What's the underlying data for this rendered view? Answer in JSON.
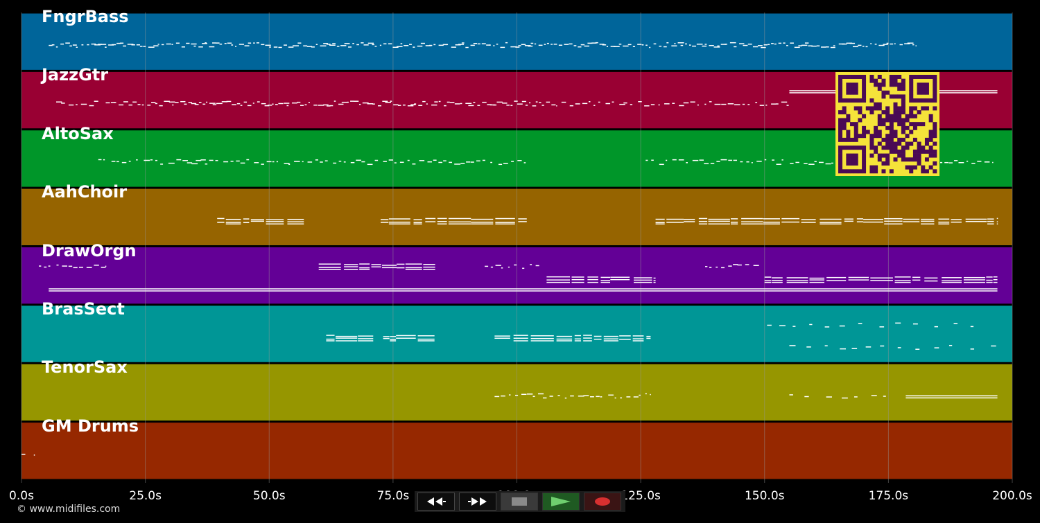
{
  "app": {
    "copyright": "© www.midifiles.com"
  },
  "colors": {
    "background": "#000000",
    "note": "#ffffff",
    "grid": "#9a9a9a",
    "qr_bg": "#f5e33a",
    "qr_fg": "#4a0a55"
  },
  "timeline": {
    "range_s": [
      0,
      200
    ],
    "ticks": [
      {
        "value": 0,
        "label": "0.0s"
      },
      {
        "value": 25,
        "label": "25.0s"
      },
      {
        "value": 50,
        "label": "50.0s"
      },
      {
        "value": 75,
        "label": "75.0s"
      },
      {
        "value": 100,
        "label": "100.0s"
      },
      {
        "value": 125,
        "label": "125.0s"
      },
      {
        "value": 150,
        "label": "150.0s"
      },
      {
        "value": 175,
        "label": "175.0s"
      },
      {
        "value": 200,
        "label": "200.0s"
      }
    ]
  },
  "tracks": [
    {
      "name": "FngrBass",
      "color": "#00659a",
      "segments": [
        {
          "start": 5.5,
          "end": 180.5,
          "density": "dense",
          "pitch": "mid"
        }
      ]
    },
    {
      "name": "JazzGtr",
      "color": "#990033",
      "segments": [
        {
          "start": 7,
          "end": 15.5,
          "density": "medium",
          "pitch": "mid"
        },
        {
          "start": 17,
          "end": 108,
          "density": "dense",
          "pitch": "mid"
        },
        {
          "start": 109,
          "end": 155,
          "density": "medium",
          "pitch": "mid"
        },
        {
          "start": 155,
          "end": 197,
          "density": "sustained",
          "pitch": "high"
        }
      ]
    },
    {
      "name": "AltoSax",
      "color": "#009629",
      "segments": [
        {
          "start": 15.5,
          "end": 102.5,
          "density": "medium",
          "pitch": "mid"
        },
        {
          "start": 126,
          "end": 196,
          "density": "medium",
          "pitch": "mid"
        }
      ]
    },
    {
      "name": "AahChoir",
      "color": "#966400",
      "segments": [
        {
          "start": 39.5,
          "end": 57,
          "density": "chords",
          "pitch": "mid"
        },
        {
          "start": 72.5,
          "end": 102,
          "density": "chords",
          "pitch": "mid"
        },
        {
          "start": 128,
          "end": 197,
          "density": "chords",
          "pitch": "mid"
        }
      ]
    },
    {
      "name": "DrawOrgn",
      "color": "#630096",
      "segments": [
        {
          "start": 3.5,
          "end": 17,
          "density": "medium",
          "pitch": "high"
        },
        {
          "start": 60,
          "end": 83.5,
          "density": "chords",
          "pitch": "high"
        },
        {
          "start": 93.5,
          "end": 104.5,
          "density": "medium",
          "pitch": "high"
        },
        {
          "start": 106,
          "end": 128,
          "density": "chords",
          "pitch": "mid"
        },
        {
          "start": 138,
          "end": 149,
          "density": "medium",
          "pitch": "high"
        },
        {
          "start": 150,
          "end": 197,
          "density": "chords",
          "pitch": "mid"
        },
        {
          "start": 5.5,
          "end": 197,
          "density": "sustained",
          "pitch": "low"
        }
      ]
    },
    {
      "name": "BrasSect",
      "color": "#009696",
      "segments": [
        {
          "start": 61.5,
          "end": 71,
          "density": "chords",
          "pitch": "mid"
        },
        {
          "start": 73,
          "end": 83.5,
          "density": "chords",
          "pitch": "mid"
        },
        {
          "start": 95.5,
          "end": 127,
          "density": "chords",
          "pitch": "mid"
        },
        {
          "start": 150.5,
          "end": 195,
          "density": "sparse",
          "pitch": "high"
        },
        {
          "start": 155,
          "end": 197,
          "density": "sparse",
          "pitch": "low"
        }
      ]
    },
    {
      "name": "TenorSax",
      "color": "#969600",
      "segments": [
        {
          "start": 95.5,
          "end": 127,
          "density": "medium",
          "pitch": "mid"
        },
        {
          "start": 155,
          "end": 174.5,
          "density": "sparse",
          "pitch": "mid"
        },
        {
          "start": 178.5,
          "end": 197,
          "density": "sustained",
          "pitch": "mid"
        }
      ]
    },
    {
      "name": "GM Drums",
      "color": "#962800",
      "segments": [
        {
          "start": 0,
          "end": 2.5,
          "density": "sparse",
          "pitch": "mid"
        }
      ]
    }
  ],
  "transport": {
    "buttons": [
      {
        "name": "rewind-button",
        "icon": "rewind-icon"
      },
      {
        "name": "fast-forward-button",
        "icon": "fast-forward-icon"
      },
      {
        "name": "stop-button",
        "icon": "stop-icon"
      },
      {
        "name": "play-button",
        "icon": "play-icon"
      },
      {
        "name": "record-button",
        "icon": "record-icon"
      }
    ]
  },
  "qr_code": {
    "icon": "qr-code-icon"
  }
}
